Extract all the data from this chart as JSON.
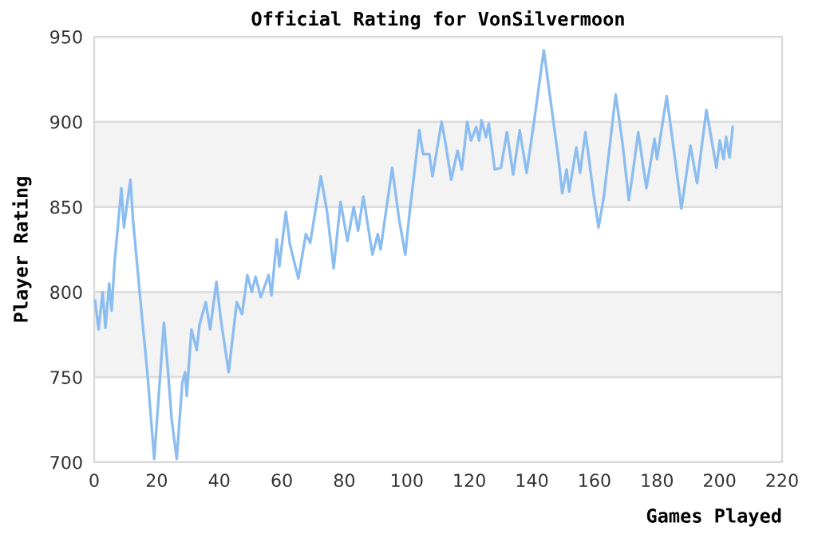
{
  "chart_data": {
    "type": "line",
    "title": "Official Rating for VonSilvermoon",
    "xlabel": "Games Played",
    "ylabel": "Player Rating",
    "xlim": [
      0,
      220
    ],
    "xticks": [
      0,
      20,
      40,
      60,
      80,
      100,
      120,
      140,
      160,
      180,
      200,
      220
    ],
    "ylim": [
      700,
      950
    ],
    "yticks": [
      700,
      750,
      800,
      850,
      900,
      950
    ],
    "grid": "y",
    "marker": "none",
    "line_style": "solid",
    "bands": [
      {
        "axis": "y",
        "from": 750,
        "to": 800,
        "color": "#f3f3f3"
      },
      {
        "axis": "y",
        "from": 850,
        "to": 900,
        "color": "#f3f3f3"
      }
    ],
    "series": [
      {
        "color": "#8cbdf0",
        "x": [
          0.3,
          1.4,
          2.7,
          3.6,
          4.8,
          5.6,
          6.5,
          7.3,
          8.7,
          9.5,
          11.6,
          12.4,
          15,
          17,
          19.2,
          20.1,
          22.3,
          23.5,
          24.8,
          26.4,
          28.2,
          29.1,
          29.6,
          31.1,
          32.8,
          33.7,
          35.7,
          37.1,
          39.1,
          40.5,
          43,
          45.6,
          47.3,
          49,
          50.4,
          51.6,
          53.3,
          55.8,
          56.7,
          58.4,
          59.2,
          61.3,
          62.6,
          65.3,
          67.7,
          69.1,
          72.5,
          74.5,
          76.6,
          78.8,
          81,
          83,
          84.4,
          86.1,
          89,
          90.7,
          91.6,
          95.3,
          97.5,
          99.5,
          100.9,
          104,
          105.2,
          107.2,
          108.2,
          111.1,
          112.3,
          114.2,
          116.2,
          117.6,
          119.3,
          120.5,
          122.2,
          123.1,
          123.9,
          125.3,
          126.2,
          128.1,
          130.1,
          132,
          134,
          136.1,
          138.3,
          140.9,
          143.8,
          146,
          148.5,
          149.7,
          151.1,
          151.9,
          154.2,
          155.4,
          157.1,
          159.6,
          161.3,
          163,
          166.8,
          169,
          171,
          172.4,
          174,
          176.6,
          179.2,
          180,
          183.1,
          186,
          187.8,
          190.7,
          192.8,
          195.8,
          199,
          200.1,
          201.3,
          202.1,
          203.2,
          204.2
        ],
        "values": [
          795,
          778,
          800,
          779,
          805,
          789,
          817,
          833,
          861,
          838,
          866,
          843,
          791,
          753,
          702,
          725,
          782,
          756,
          725,
          702,
          747,
          753,
          739,
          778,
          766,
          781,
          794,
          778,
          806,
          784,
          753,
          794,
          787,
          810,
          800,
          809,
          797,
          810,
          798,
          831,
          815,
          847,
          828,
          808,
          834,
          829,
          868,
          847,
          814,
          853,
          830,
          850,
          836,
          856,
          822,
          834,
          825,
          873,
          843,
          822,
          847,
          895,
          881,
          881,
          868,
          900,
          888,
          866,
          883,
          872,
          900,
          889,
          897,
          889,
          901,
          891,
          899,
          872,
          873,
          894,
          869,
          895,
          870,
          903,
          942,
          912,
          878,
          858,
          872,
          859,
          885,
          870,
          894,
          859,
          838,
          856,
          916,
          887,
          854,
          872,
          894,
          861,
          890,
          878,
          915,
          875,
          849,
          886,
          864,
          907,
          873,
          889,
          878,
          891,
          879,
          897
        ]
      }
    ]
  }
}
